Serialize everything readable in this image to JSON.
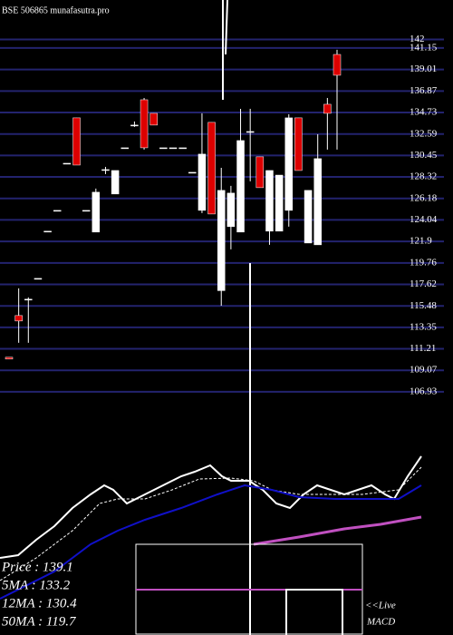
{
  "chart_data": {
    "type": "candlestick",
    "title": "BSE 506865 munafasutra.pro",
    "ylim": [
      106.2,
      145.93
    ],
    "yticks": [
      142,
      141.15,
      139.01,
      136.87,
      134.73,
      132.59,
      130.45,
      128.32,
      126.18,
      124.04,
      121.9,
      119.76,
      117.62,
      115.48,
      113.35,
      111.21,
      109.07,
      106.93
    ],
    "grid": true,
    "grid_color": "#23236e",
    "up_color": "#ffffff",
    "down_color": "#dd0000",
    "categories": [
      null,
      null,
      null,
      null,
      null,
      null,
      null,
      null,
      null,
      null,
      null,
      null,
      null,
      null,
      null,
      null,
      null,
      null,
      null,
      null,
      null,
      null,
      null,
      null,
      null,
      null,
      null,
      null,
      null,
      null,
      null,
      null,
      null,
      null,
      null
    ],
    "open": [
      110.37,
      114.52,
      116.15,
      118.22,
      122.92,
      124.99,
      129.68,
      134.2,
      124.99,
      122.83,
      129.05,
      126.62,
      131.22,
      133.48,
      136.0,
      134.65,
      131.22,
      131.22,
      131.22,
      128.78,
      124.99,
      133.75,
      117.0,
      123.37,
      122.83,
      132.84,
      130.32,
      122.92,
      122.92,
      124.99,
      134.2,
      121.74,
      121.56,
      135.55,
      140.51
    ],
    "high": [
      110.37,
      117.23,
      116.33,
      118.22,
      122.92,
      124.99,
      129.68,
      134.2,
      124.99,
      127.16,
      129.32,
      128.96,
      131.22,
      133.84,
      136.18,
      134.65,
      131.22,
      131.22,
      131.22,
      128.78,
      134.65,
      133.75,
      129.23,
      127.43,
      135.1,
      135.1,
      130.32,
      128.96,
      128.5,
      134.56,
      134.2,
      126.98,
      132.57,
      136.18,
      140.97
    ],
    "low": [
      110.19,
      111.81,
      111.81,
      118.22,
      122.92,
      124.99,
      129.68,
      129.5,
      124.99,
      122.83,
      128.6,
      126.62,
      131.22,
      133.3,
      131.04,
      133.48,
      131.22,
      131.22,
      131.22,
      128.78,
      124.72,
      124.63,
      115.5,
      121.11,
      122.83,
      127.88,
      127.25,
      121.56,
      122.92,
      123.37,
      128.96,
      121.74,
      121.56,
      131.04,
      131.04
    ],
    "close": [
      110.19,
      113.98,
      116.15,
      118.22,
      122.92,
      124.99,
      129.68,
      129.5,
      124.99,
      126.8,
      129.05,
      128.96,
      131.22,
      133.48,
      131.22,
      133.48,
      131.22,
      131.22,
      131.22,
      128.78,
      130.59,
      124.63,
      126.98,
      126.71,
      131.94,
      132.84,
      127.25,
      128.96,
      128.5,
      134.2,
      128.96,
      126.98,
      130.14,
      134.65,
      138.44
    ],
    "annotations": [
      "Price : 139.1",
      "5MA : 133.2",
      "12MA : 130.4",
      "50MA : 119.7"
    ],
    "macd_label": [
      "<<Live",
      "MACD"
    ]
  }
}
